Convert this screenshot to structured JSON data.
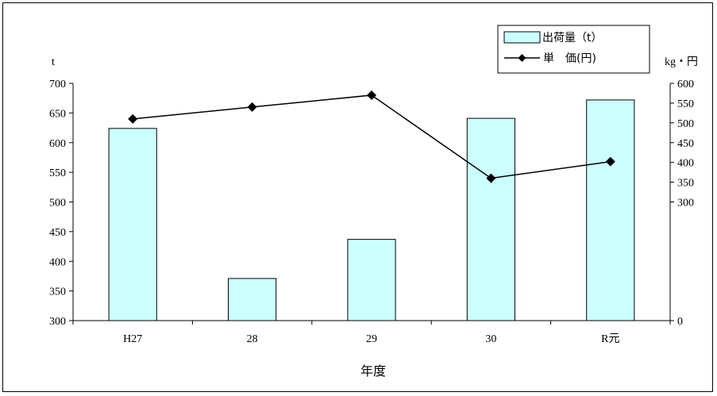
{
  "chart_data": {
    "type": "bar",
    "categories": [
      "H27",
      "28",
      "29",
      "30",
      "R元"
    ],
    "xlabel": "年度",
    "left_axis": {
      "unit": "t",
      "ylim": [
        300,
        700
      ],
      "ticks": [
        300,
        350,
        400,
        450,
        500,
        550,
        600,
        650,
        700
      ]
    },
    "right_axis": {
      "unit": "kg・円",
      "ylim": [
        0,
        600
      ],
      "ticks": [
        0,
        300,
        350,
        400,
        450,
        500,
        550,
        600
      ]
    },
    "series": [
      {
        "name": "出荷量（t）",
        "type": "bar",
        "axis": "left",
        "values": [
          624,
          371,
          437,
          641,
          672
        ],
        "color": "#ccffff"
      },
      {
        "name": "単　価(円)",
        "type": "line",
        "axis": "right",
        "values": [
          510,
          540,
          570,
          360,
          402
        ],
        "color": "#000000",
        "marker": "diamond"
      }
    ],
    "legend_position": "top-right",
    "grid": false
  }
}
